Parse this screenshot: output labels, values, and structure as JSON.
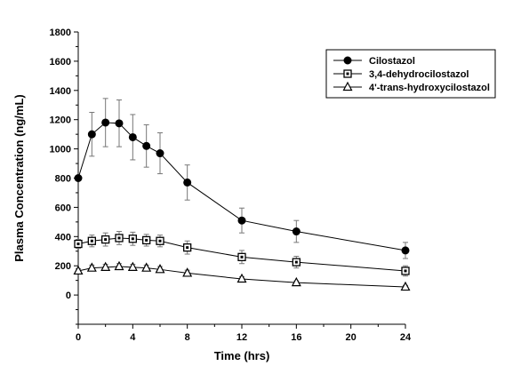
{
  "chart_data": {
    "type": "line",
    "xlabel": "Time (hrs)",
    "ylabel": "Plasma Concentration (ng/mL)",
    "x_ticks": [
      0,
      4,
      8,
      12,
      16,
      20,
      24
    ],
    "y_ticks": [
      0,
      200,
      400,
      600,
      800,
      1000,
      1200,
      1400,
      1600,
      1800
    ],
    "xlim": [
      0,
      24
    ],
    "ylim": [
      -200,
      1800
    ],
    "grid": false,
    "legend_position": "top-right",
    "series": [
      {
        "name": "Cilostazol",
        "marker": "filled-circle",
        "x": [
          0,
          1,
          2,
          3,
          4,
          5,
          6,
          8,
          12,
          16,
          24
        ],
        "y": [
          800,
          1100,
          1180,
          1175,
          1080,
          1020,
          970,
          770,
          510,
          435,
          305
        ],
        "err": [
          0,
          150,
          165,
          160,
          155,
          145,
          140,
          120,
          85,
          75,
          55
        ]
      },
      {
        "name": "3,4-dehydrocilostazol",
        "marker": "open-square",
        "x": [
          0,
          1,
          2,
          3,
          4,
          5,
          6,
          8,
          12,
          16,
          24
        ],
        "y": [
          350,
          370,
          380,
          390,
          385,
          375,
          370,
          325,
          260,
          225,
          165
        ],
        "err": [
          30,
          40,
          45,
          45,
          45,
          40,
          40,
          45,
          45,
          40,
          35
        ]
      },
      {
        "name": "4'-trans-hydroxycilostazol",
        "marker": "open-triangle",
        "x": [
          0,
          1,
          2,
          3,
          4,
          5,
          6,
          8,
          12,
          16,
          24
        ],
        "y": [
          165,
          185,
          190,
          195,
          190,
          185,
          175,
          150,
          110,
          85,
          55
        ],
        "err": [
          15,
          20,
          20,
          20,
          20,
          20,
          20,
          20,
          15,
          12,
          10
        ]
      }
    ]
  }
}
